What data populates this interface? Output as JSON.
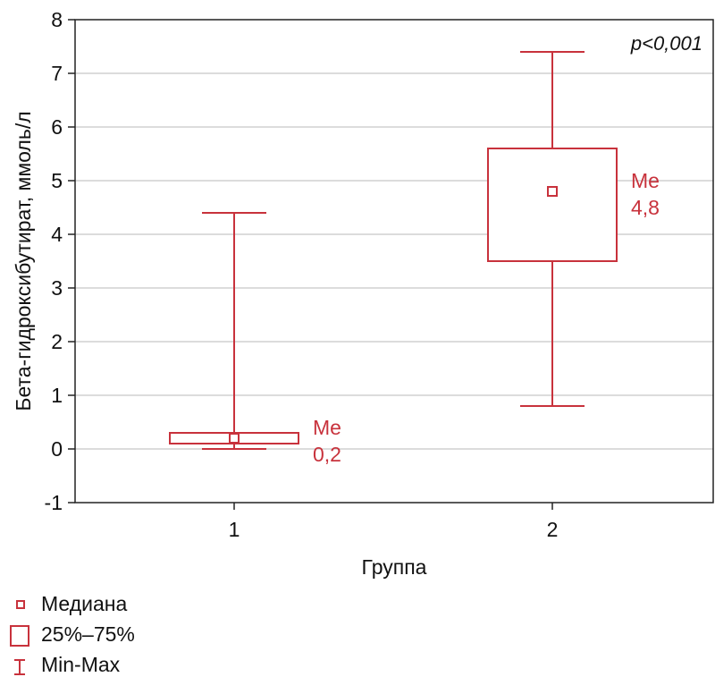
{
  "chart_data": {
    "type": "box",
    "xlabel": "Группа",
    "ylabel": "Бета-гидроксибутират, ммоль/л",
    "ylim": [
      -1,
      8
    ],
    "yticks": [
      "-1",
      "0",
      "1",
      "2",
      "3",
      "4",
      "5",
      "6",
      "7",
      "8"
    ],
    "categories": [
      "1",
      "2"
    ],
    "grid": true,
    "annotation": "p<0,001",
    "color": "#c8323c",
    "boxes": [
      {
        "group": "1",
        "min": 0.0,
        "q1": 0.1,
        "median": 0.2,
        "q3": 0.3,
        "max": 4.4,
        "label_title": "Me",
        "label_value": "0,2"
      },
      {
        "group": "2",
        "min": 0.8,
        "q1": 3.5,
        "median": 4.8,
        "q3": 5.6,
        "max": 7.4,
        "label_title": "Me",
        "label_value": "4,8"
      }
    ]
  },
  "legend": {
    "items": [
      {
        "icon": "median-square-icon",
        "label": "Медиана"
      },
      {
        "icon": "box-icon",
        "label": "25%–75%"
      },
      {
        "icon": "whisker-icon",
        "label": "Min-Max"
      }
    ]
  }
}
